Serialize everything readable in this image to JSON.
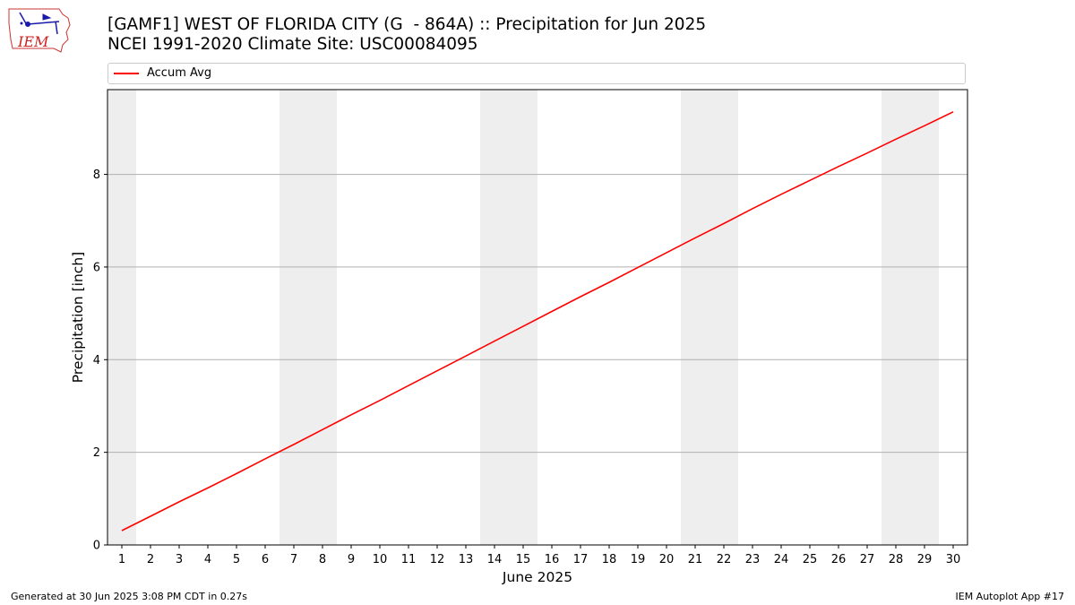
{
  "header": {
    "title_line1": "[GAMF1] WEST OF FLORIDA CITY (G  - 864A) :: Precipitation for Jun 2025",
    "title_line2": "NCEI 1991-2020 Climate Site: USC00084095",
    "logo_text": "IEM"
  },
  "footer": {
    "generated": "Generated at 30 Jun 2025 3:08 PM CDT in 0.27s",
    "app": "IEM Autoplot App #17"
  },
  "chart_data": {
    "type": "line",
    "xlabel": "June 2025",
    "ylabel": "Precipitation [inch]",
    "xlim": [
      0.5,
      30.5
    ],
    "ylim": [
      0,
      9.83
    ],
    "yticks": [
      0,
      2,
      4,
      6,
      8
    ],
    "xticks": [
      1,
      2,
      3,
      4,
      5,
      6,
      7,
      8,
      9,
      10,
      11,
      12,
      13,
      14,
      15,
      16,
      17,
      18,
      19,
      20,
      21,
      22,
      23,
      24,
      25,
      26,
      27,
      28,
      29,
      30
    ],
    "grid": "horizontal",
    "legend_position": "top",
    "weekend_shading": [
      [
        0.5,
        1.5
      ],
      [
        6.5,
        8.5
      ],
      [
        13.5,
        15.5
      ],
      [
        20.5,
        22.5
      ],
      [
        27.5,
        29.5
      ]
    ],
    "series": [
      {
        "name": "Accum Avg",
        "color": "#ff0000",
        "x": [
          1,
          2,
          3,
          4,
          5,
          6,
          7,
          8,
          9,
          10,
          11,
          12,
          13,
          14,
          15,
          16,
          17,
          18,
          19,
          20,
          21,
          22,
          23,
          24,
          25,
          26,
          27,
          28,
          29,
          30
        ],
        "values": [
          0.31,
          0.62,
          0.93,
          1.23,
          1.54,
          1.86,
          2.17,
          2.49,
          2.81,
          3.12,
          3.44,
          3.76,
          4.08,
          4.4,
          4.72,
          5.04,
          5.36,
          5.67,
          5.99,
          6.31,
          6.63,
          6.94,
          7.26,
          7.57,
          7.87,
          8.17,
          8.46,
          8.76,
          9.05,
          9.35
        ]
      }
    ]
  }
}
